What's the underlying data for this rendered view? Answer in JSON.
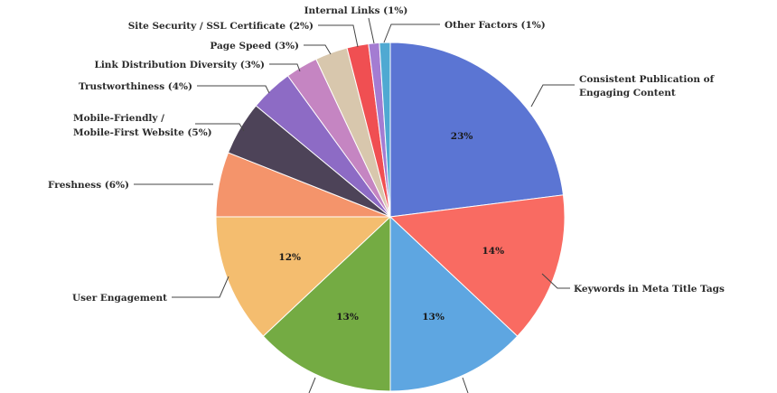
{
  "chart_data": {
    "type": "pie",
    "title": "",
    "slices": [
      {
        "label": "Consistent Publication of Engaging Content",
        "value": 23,
        "pct_label": "23%",
        "color": "#5B75D3"
      },
      {
        "label": "Keywords in Meta Title Tags",
        "value": 14,
        "pct_label": "14%",
        "color": "#F96B62"
      },
      {
        "label": "",
        "value": 13,
        "pct_label": "13%",
        "color": "#5EA6E1"
      },
      {
        "label": "",
        "value": 13,
        "pct_label": "13%",
        "color": "#74AB43"
      },
      {
        "label": "User Engagement",
        "value": 12,
        "pct_label": "12%",
        "color": "#F4BD6F"
      },
      {
        "label": "Freshness (6%)",
        "value": 6,
        "pct_label": "",
        "color": "#F4946B"
      },
      {
        "label": "Mobile-Friendly / Mobile-First Website (5%)",
        "value": 5,
        "pct_label": "",
        "color": "#4D4358"
      },
      {
        "label": "Trustworthiness (4%)",
        "value": 4,
        "pct_label": "",
        "color": "#8D6BC5"
      },
      {
        "label": "Link Distribution Diversity (3%)",
        "value": 3,
        "pct_label": "",
        "color": "#C585C2"
      },
      {
        "label": "Page Speed (3%)",
        "value": 3,
        "pct_label": "",
        "color": "#D8C7AD"
      },
      {
        "label": "Site Security / SSL Certificate (2%)",
        "value": 2,
        "pct_label": "",
        "color": "#F04F52"
      },
      {
        "label": "Internal Links (1%)",
        "value": 1,
        "pct_label": "",
        "color": "#A47CD2"
      },
      {
        "label": "Other Factors (1%)",
        "value": 1,
        "pct_label": "",
        "color": "#4FA9D2"
      }
    ]
  },
  "labels": {
    "consistent_line1": "Consistent Publication of",
    "consistent_line2": "Engaging Content",
    "keywords": "Keywords in Meta Title Tags",
    "user_engagement": "User Engagement",
    "freshness": "Freshness (6%)",
    "mobile_line1": "Mobile-Friendly /",
    "mobile_line2": "Mobile-First Website (5%)",
    "trust": "Trustworthiness (4%)",
    "link_div": "Link Distribution Diversity (3%)",
    "page_speed": "Page Speed (3%)",
    "ssl": "Site Security / SSL Certificate (2%)",
    "internal": "Internal Links (1%)",
    "other": "Other Factors (1%)"
  }
}
